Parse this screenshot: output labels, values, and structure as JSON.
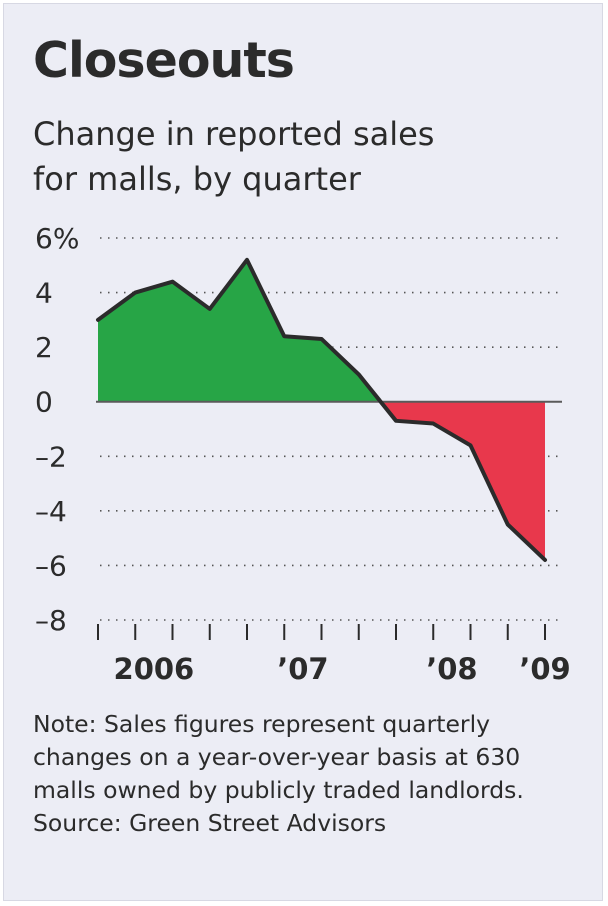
{
  "title": "Closeouts",
  "subtitle": [
    "Change in reported sales",
    "for malls, by quarter"
  ],
  "note_lines": [
    "Note: Sales figures represent quarterly",
    "changes on a year-over-year basis at 630",
    "malls owned by publicly traded landlords."
  ],
  "source": "Source: Green Street Advisors",
  "chart_data": {
    "type": "area",
    "title": "Closeouts",
    "subtitle": "Change in reported sales for malls, by quarter",
    "xlabel": "",
    "ylabel": "",
    "ylim": [
      -8,
      6
    ],
    "grid": true,
    "y_ticks": [
      6,
      4,
      2,
      0,
      -2,
      -4,
      -6,
      -8
    ],
    "y_tick_labels": [
      "6%",
      "4",
      "2",
      "0",
      "–2",
      "–4",
      "–6",
      "–8"
    ],
    "x_tick_labels": [
      {
        "label": "2006",
        "quarter_index": 1.5
      },
      {
        "label": "’07",
        "quarter_index": 5.5
      },
      {
        "label": "’08",
        "quarter_index": 9.5
      },
      {
        "label": "’09",
        "quarter_index": 12
      }
    ],
    "x_quarter_ticks": [
      0,
      1,
      2,
      3,
      4,
      5,
      6,
      7,
      8,
      9,
      10,
      11,
      12
    ],
    "x": [
      0,
      1,
      2,
      3,
      4,
      5,
      6,
      7,
      8,
      9,
      10,
      11,
      12
    ],
    "series": [
      {
        "values": [
          3.0,
          4.0,
          4.4,
          3.4,
          5.2,
          2.4,
          2.3,
          1.0,
          -0.7,
          -0.8,
          -1.6,
          -4.5,
          -5.8
        ]
      }
    ],
    "positive_color": "#27a546",
    "negative_color": "#e8384c",
    "line_color": "#2b2b2b"
  }
}
